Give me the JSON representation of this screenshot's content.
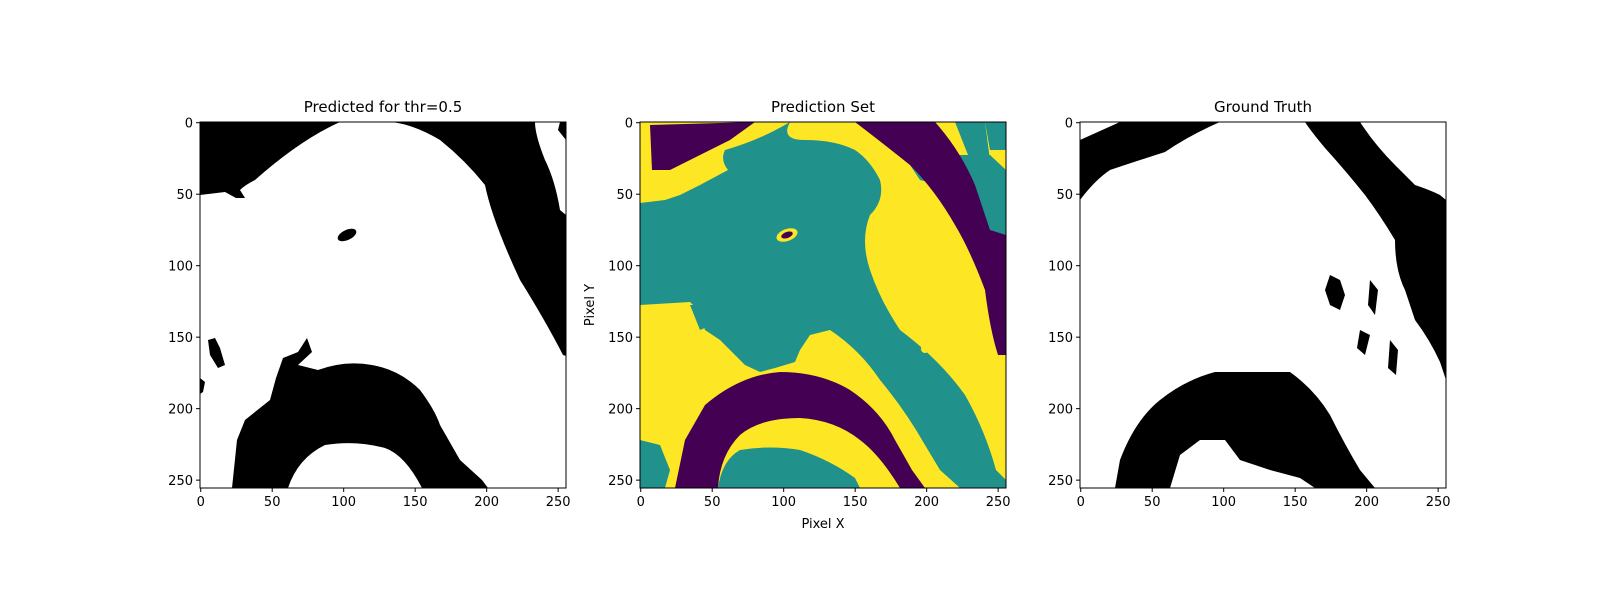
{
  "chart_data": [
    {
      "type": "heatmap",
      "title": "Predicted for thr=0.5",
      "xlabel": "",
      "ylabel": "",
      "xlim": [
        0,
        255
      ],
      "ylim": [
        255,
        0
      ],
      "xticks": [
        "0",
        "50",
        "100",
        "150",
        "200",
        "250"
      ],
      "yticks": [
        "0",
        "50",
        "100",
        "150",
        "200",
        "250"
      ],
      "grid": false,
      "colormap": "binary mask",
      "colors": {
        "0": "#000000",
        "1": "#ffffff"
      }
    },
    {
      "type": "heatmap",
      "title": "Prediction Set",
      "xlabel": "Pixel X",
      "ylabel": "Pixel Y",
      "xlim": [
        0,
        255
      ],
      "ylim": [
        255,
        0
      ],
      "xticks": [
        "0",
        "50",
        "100",
        "150",
        "200",
        "250"
      ],
      "yticks": [
        "0",
        "50",
        "100",
        "150",
        "200",
        "250"
      ],
      "grid": false,
      "colormap": "viridis (3 classes)",
      "colors": {
        "low": "#440154",
        "mid": "#21918c",
        "high": "#fde725"
      }
    },
    {
      "type": "heatmap",
      "title": "Ground Truth",
      "xlabel": "",
      "ylabel": "",
      "xlim": [
        0,
        255
      ],
      "ylim": [
        255,
        0
      ],
      "xticks": [
        "0",
        "50",
        "100",
        "150",
        "200",
        "250"
      ],
      "yticks": [
        "0",
        "50",
        "100",
        "150",
        "200",
        "250"
      ],
      "grid": false,
      "colormap": "binary mask",
      "colors": {
        "0": "#000000",
        "1": "#ffffff"
      }
    }
  ]
}
